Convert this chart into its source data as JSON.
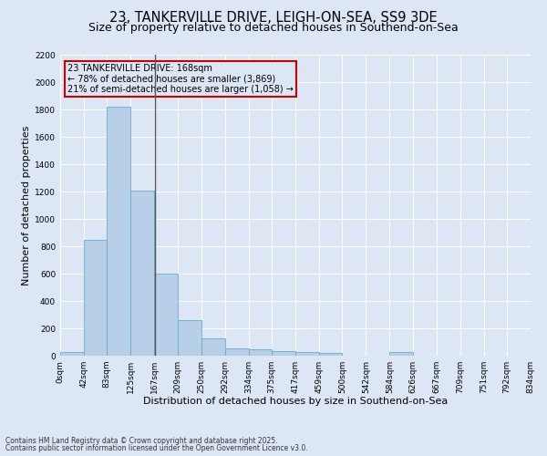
{
  "title": "23, TANKERVILLE DRIVE, LEIGH-ON-SEA, SS9 3DE",
  "subtitle": "Size of property relative to detached houses in Southend-on-Sea",
  "xlabel": "Distribution of detached houses by size in Southend-on-Sea",
  "ylabel": "Number of detached properties",
  "footnote1": "Contains HM Land Registry data © Crown copyright and database right 2025.",
  "footnote2": "Contains public sector information licensed under the Open Government Licence v3.0.",
  "annotation_line1": "23 TANKERVILLE DRIVE: 168sqm",
  "annotation_line2": "← 78% of detached houses are smaller (3,869)",
  "annotation_line3": "21% of semi-detached houses are larger (1,058) →",
  "property_size": 168,
  "bin_edges": [
    0,
    42,
    83,
    125,
    167,
    209,
    250,
    292,
    334,
    375,
    417,
    459,
    500,
    542,
    584,
    626,
    667,
    709,
    751,
    792,
    834
  ],
  "bar_heights": [
    25,
    850,
    1820,
    1210,
    600,
    260,
    130,
    55,
    45,
    32,
    28,
    20,
    0,
    0,
    30,
    0,
    0,
    0,
    0,
    0
  ],
  "bar_color": "#b8cfe8",
  "bar_edge_color": "#6aaad4",
  "vline_color": "#555555",
  "annotation_box_color": "#cc0000",
  "background_color": "#dce6f5",
  "grid_color": "#ffffff",
  "ylim": [
    0,
    2200
  ],
  "yticks": [
    0,
    200,
    400,
    600,
    800,
    1000,
    1200,
    1400,
    1600,
    1800,
    2000,
    2200
  ],
  "title_fontsize": 10.5,
  "subtitle_fontsize": 9,
  "label_fontsize": 8,
  "tick_fontsize": 6.5,
  "footnote_fontsize": 5.5,
  "annotation_fontsize": 7
}
